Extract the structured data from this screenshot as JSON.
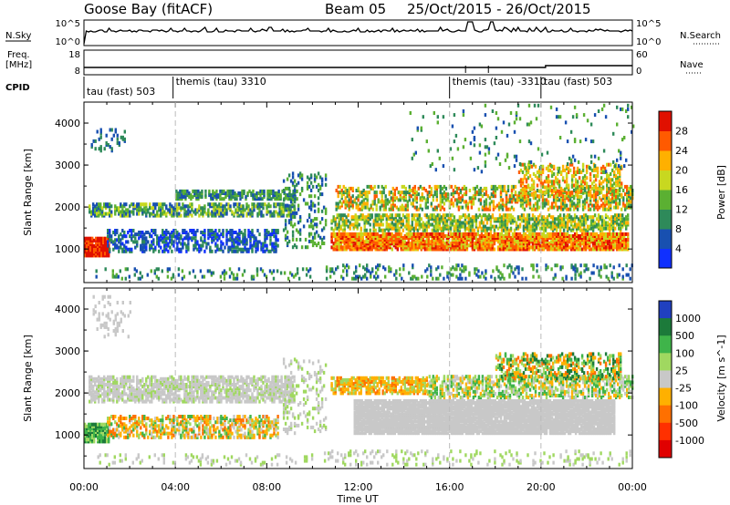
{
  "header": {
    "station": "Goose Bay (fitACF)",
    "beam": "Beam 05",
    "date_range": "25/Oct/2015 - 26/Oct/2015"
  },
  "top_panels": {
    "nsky_label": "N.Sky",
    "nsky_ticks": [
      "10^5",
      "10^0"
    ],
    "nsearch_label": "N.Search",
    "nsearch_ticks": [
      "10^5",
      "10^0"
    ],
    "freq_label_1": "Freq.",
    "freq_label_2": "[MHz]",
    "freq_ticks": [
      "18",
      "8"
    ],
    "nave_label": "Nave",
    "nave_ticks": [
      "60",
      "0"
    ],
    "cpid_label": "CPID"
  },
  "cpid_segments": [
    {
      "label": "tau (fast) 503",
      "start_hour": 0.0
    },
    {
      "label": "themis (tau) 3310",
      "start_hour": 3.9
    },
    {
      "label": "themis (tau) -3310",
      "start_hour": 16.0
    },
    {
      "label": "tau (fast) 503",
      "start_hour": 20.0
    }
  ],
  "chart_data": [
    {
      "type": "heatmap",
      "parameter": "power",
      "ylabel": "Slant Range [km]",
      "yticks": [
        "1000",
        "2000",
        "3000",
        "4000"
      ],
      "ylim": [
        200,
        4500
      ],
      "xlim": [
        0,
        24
      ],
      "colorbar": {
        "label": "Power [dB]",
        "ticks": [
          "4",
          "8",
          "12",
          "16",
          "20",
          "24",
          "28"
        ]
      },
      "colors": [
        "#1030ff",
        "#1850b0",
        "#2e8a5a",
        "#5bb032",
        "#c8d820",
        "#ffb000",
        "#ff5a00",
        "#e01000"
      ],
      "data_points": [
        {
          "x": 0.5,
          "y": 1000,
          "value": 28
        },
        {
          "x": 2.0,
          "y": 1900,
          "value": 12
        },
        {
          "x": 6.0,
          "y": 2250,
          "value": 10
        },
        {
          "x": 6.0,
          "y": 1200,
          "value": 8
        },
        {
          "x": 14.0,
          "y": 1100,
          "value": 24
        },
        {
          "x": 20.0,
          "y": 1200,
          "value": 22
        },
        {
          "x": 21.0,
          "y": 2100,
          "value": 18
        }
      ]
    },
    {
      "type": "heatmap",
      "parameter": "velocity",
      "ylabel": "Slant Range [km]",
      "xlabel": "Time UT",
      "yticks": [
        "1000",
        "2000",
        "3000",
        "4000"
      ],
      "xticks": [
        "00:00",
        "04:00",
        "08:00",
        "12:00",
        "16:00",
        "20:00",
        "00:00"
      ],
      "ylim": [
        200,
        4500
      ],
      "xlim": [
        0,
        24
      ],
      "colorbar": {
        "label": "Velocity [m s^-1]",
        "ticks": [
          "1000",
          "500",
          "100",
          "25",
          "-25",
          "-100",
          "-500",
          "-1000"
        ]
      },
      "colors": [
        "#2040c0",
        "#1c7a3a",
        "#3fb44a",
        "#a0d860",
        "#c8c8c8",
        "#ffb000",
        "#ff7000",
        "#ff3000",
        "#e00000"
      ],
      "data_points": [
        {
          "x": 0.5,
          "y": 1000,
          "value": 300
        },
        {
          "x": 5.0,
          "y": 2250,
          "value": 0
        },
        {
          "x": 7.0,
          "y": 1200,
          "value": -200
        },
        {
          "x": 13.0,
          "y": 2050,
          "value": -300
        },
        {
          "x": 18.0,
          "y": 1500,
          "value": 0
        },
        {
          "x": 21.0,
          "y": 2700,
          "value": -150
        }
      ]
    }
  ]
}
